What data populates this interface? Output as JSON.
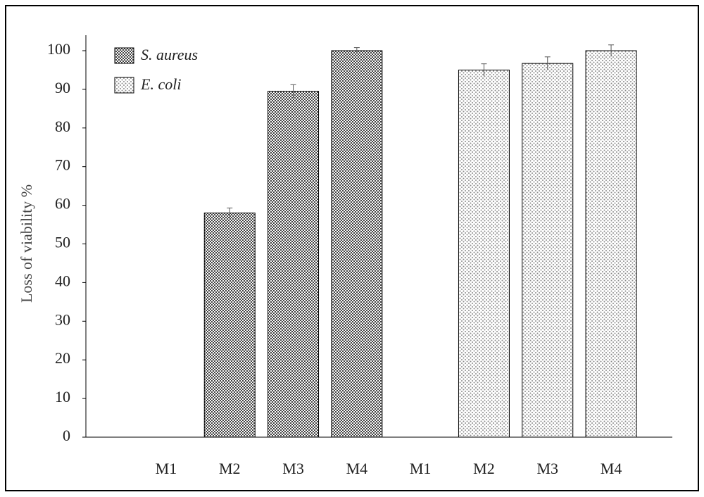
{
  "chart_data": {
    "type": "bar",
    "y_label": "Loss of viability %",
    "categories": [
      "M1",
      "M2",
      "M3",
      "M4",
      "M1",
      "M2",
      "M3",
      "M4"
    ],
    "series": [
      {
        "name": "S. aureus",
        "color": "#333333",
        "values": [
          0,
          58,
          89.5,
          100,
          null,
          null,
          null,
          null
        ],
        "errors": [
          null,
          1.3,
          1.7,
          0.8,
          null,
          null,
          null,
          null
        ]
      },
      {
        "name": "E. coli",
        "color": "#8a8a8a",
        "values": [
          null,
          null,
          null,
          null,
          0,
          95,
          96.7,
          100
        ],
        "errors": [
          null,
          null,
          null,
          null,
          null,
          1.6,
          1.7,
          1.5
        ]
      }
    ],
    "ylim": [
      0,
      100
    ],
    "yticks": [
      0,
      10,
      20,
      30,
      40,
      50,
      60,
      70,
      80,
      90,
      100
    ],
    "grid": false,
    "legend": "upper left"
  }
}
